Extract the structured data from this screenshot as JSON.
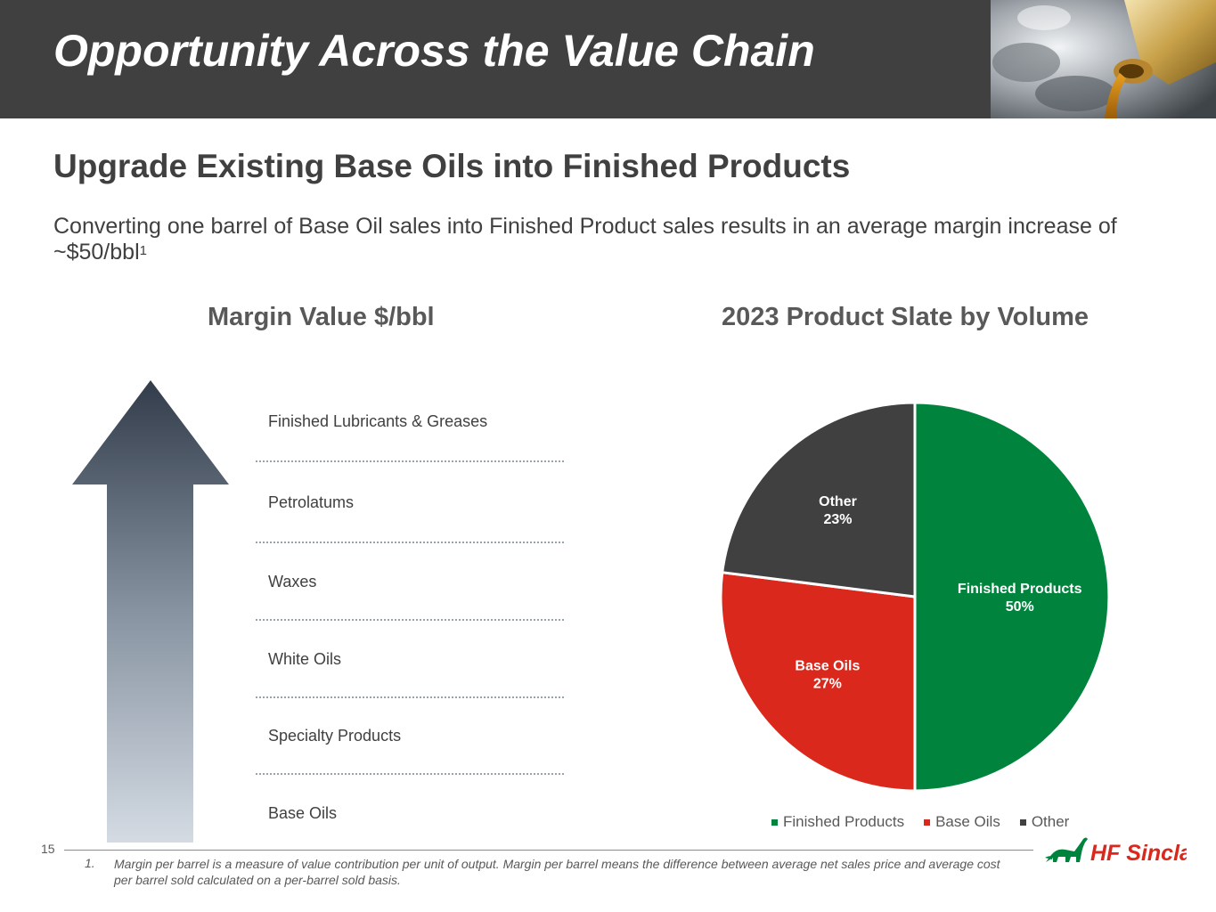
{
  "header": {
    "title": "Opportunity Across the Value Chain"
  },
  "section": {
    "subtitle": "Upgrade Existing Base Oils into Finished Products",
    "description": "Converting one barrel of Base Oil sales into Finished Product sales results in an average margin increase of ~$50/bbl",
    "description_sup": "1"
  },
  "left_panel": {
    "title": "Margin Value $/bbl",
    "tiers": [
      "Finished Lubricants & Greases",
      "Petrolatums",
      "Waxes",
      "White Oils",
      "Specialty Products",
      "Base Oils"
    ]
  },
  "chart_data": {
    "type": "pie",
    "title": "2023 Product Slate by Volume",
    "slices": [
      {
        "label": "Finished Products",
        "value": 50,
        "display": "50%",
        "color": "#00843d"
      },
      {
        "label": "Base Oils",
        "value": 27,
        "display": "27%",
        "color": "#da291c"
      },
      {
        "label": "Other",
        "value": 23,
        "display": "23%",
        "color": "#404040"
      }
    ],
    "legend": [
      "Finished Products",
      "Base Oils",
      "Other"
    ],
    "legend_position": "bottom"
  },
  "footer": {
    "page_number": "15",
    "footnote_number": "1.",
    "footnote_text": "Margin per barrel is a measure of value contribution per unit of output. Margin per barrel means the difference between average net sales price and average cost per barrel sold calculated on a per-barrel sold basis.",
    "logo_text": "HF Sinclair",
    "brand_color": "#00843d",
    "logo_accent": "#da291c"
  }
}
